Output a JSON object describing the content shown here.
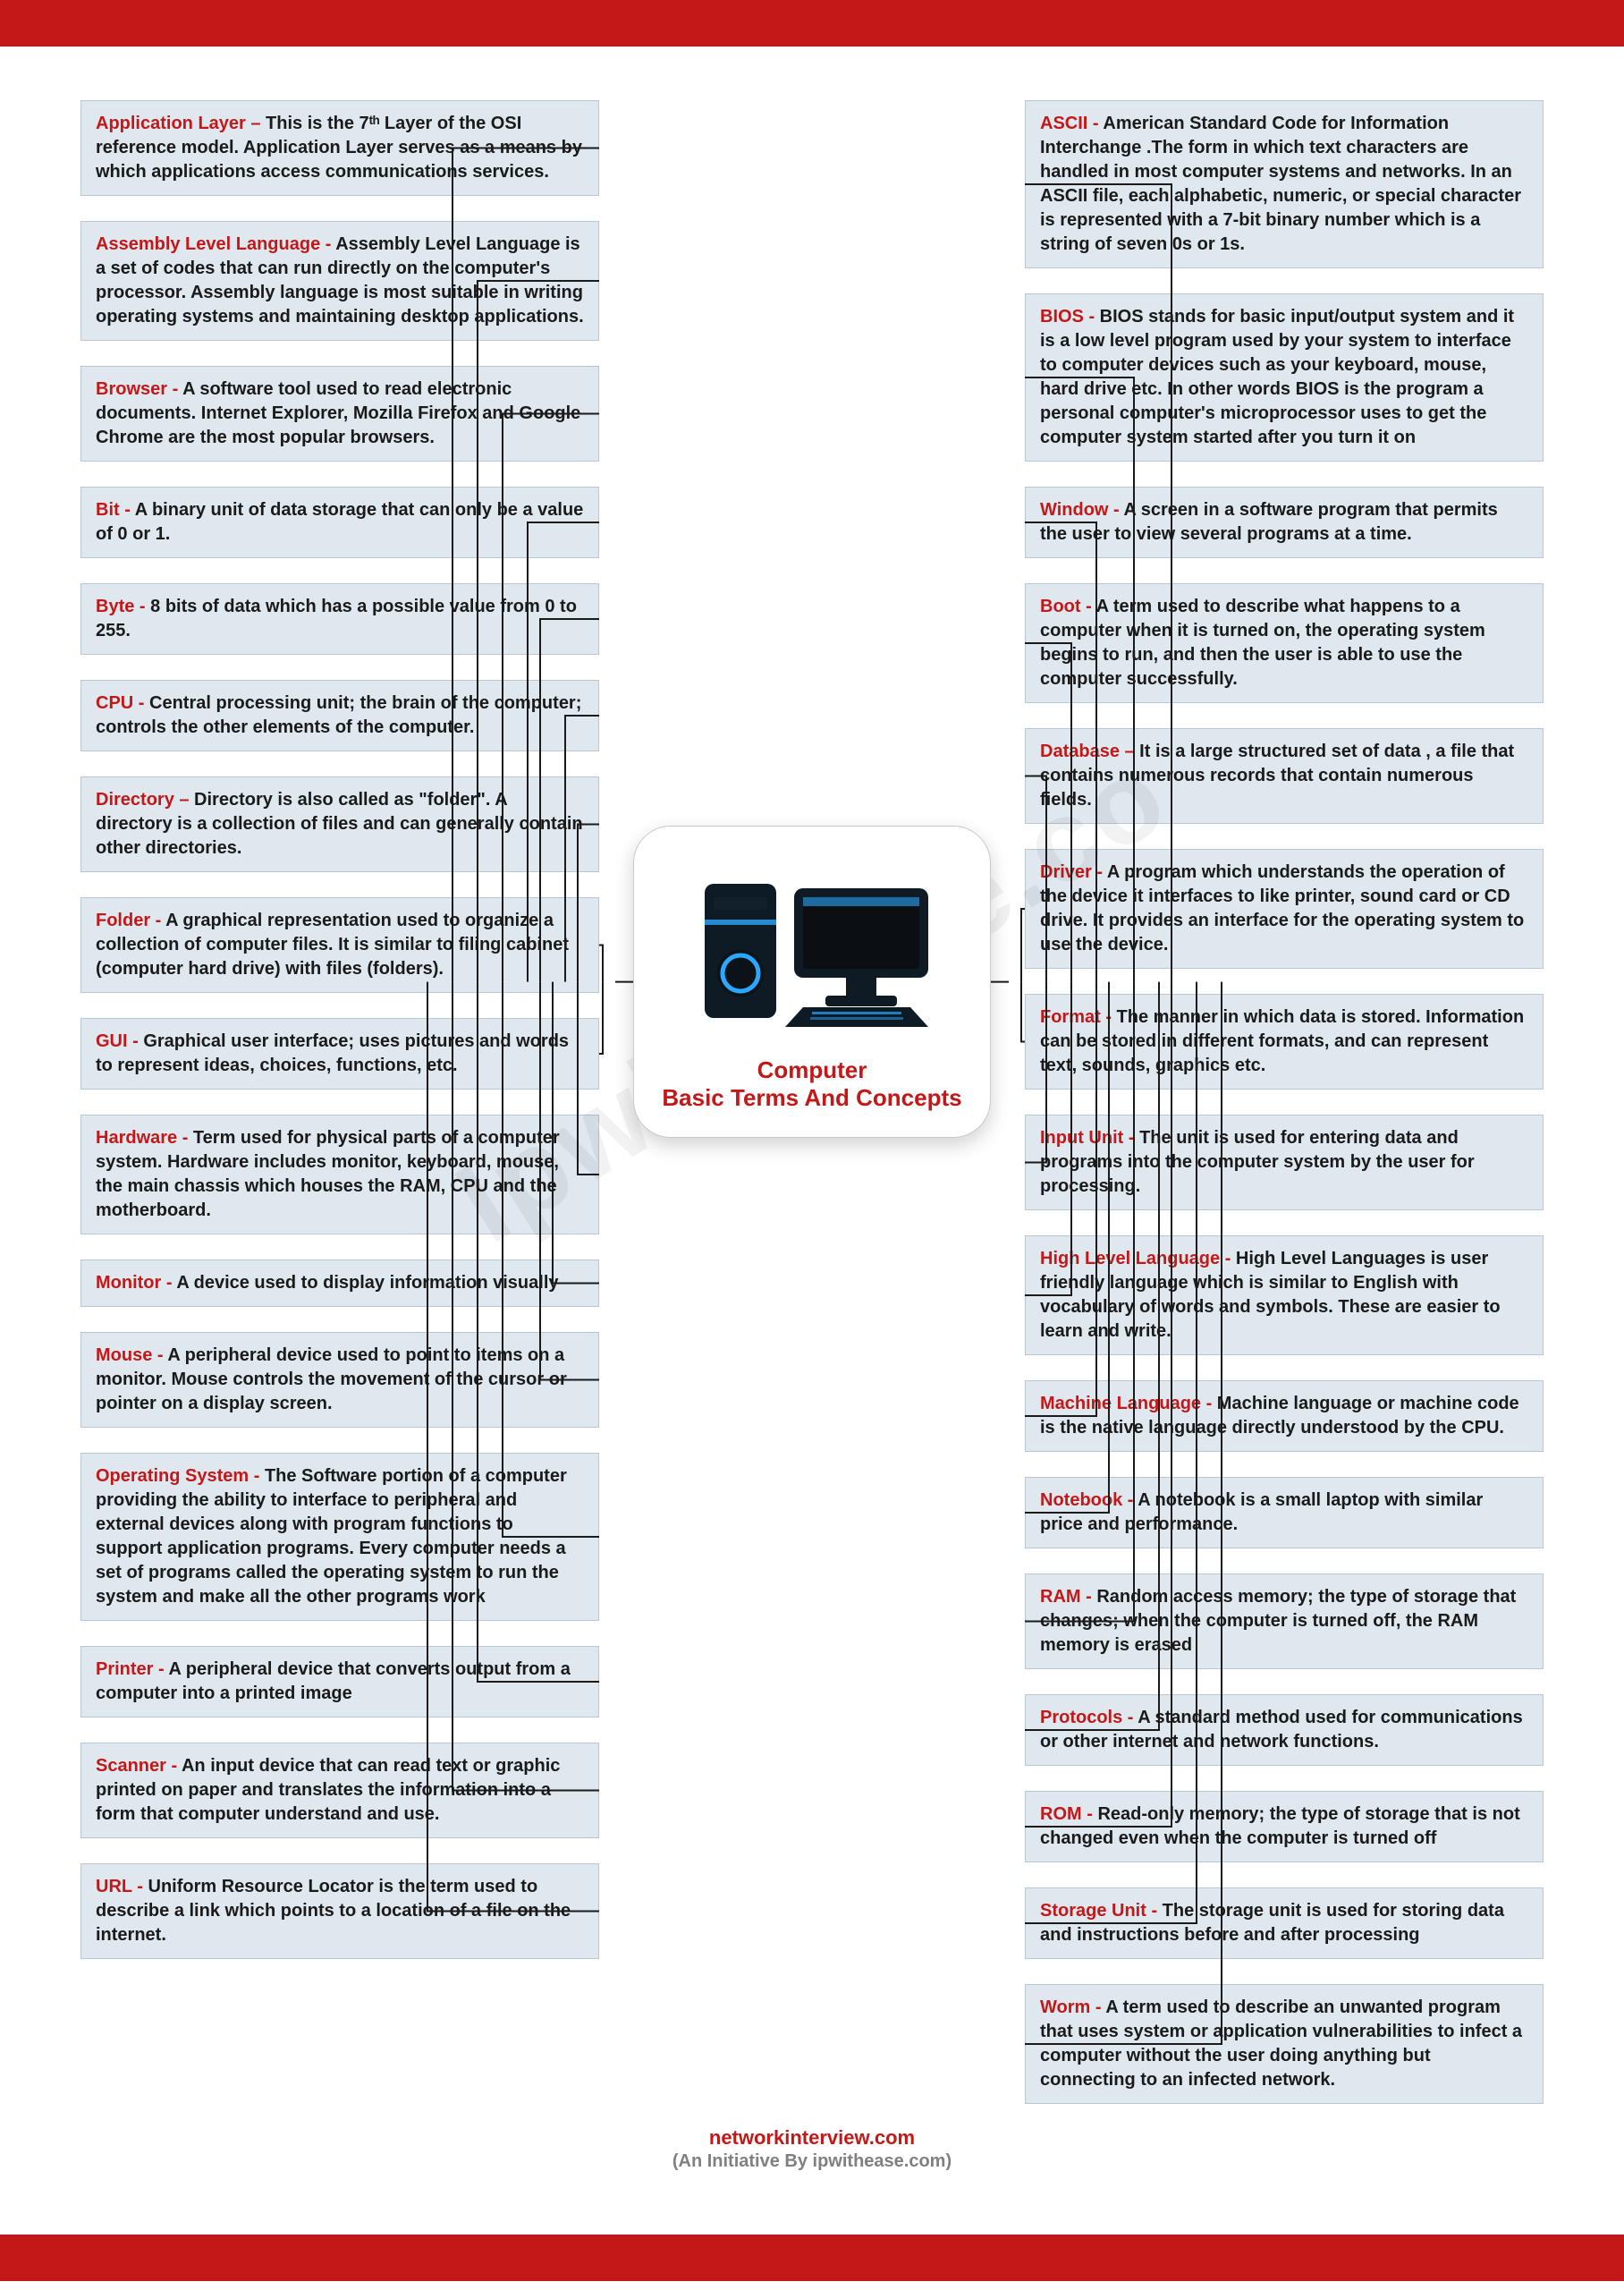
{
  "colors": {
    "bar": "#c41818",
    "box_bg": "#dfe7ef",
    "box_border": "#b9c6d3",
    "term": "#c41818",
    "text": "#1a1a1a",
    "footer_sub": "#808080",
    "wire": "#1a1a1a"
  },
  "center": {
    "line1": "Computer",
    "line2": "Basic Terms And Concepts",
    "pc_body": "#0e1a24",
    "pc_accent": "#2aa8ff",
    "screen": "#0b0f14"
  },
  "footer": {
    "site": "networkinterview.com",
    "sub": "(An Initiative By ipwithease.com)"
  },
  "watermark": "Ipwithease.co",
  "left": [
    {
      "term": "Application Layer –",
      "def": " This is the 7ᵗʰ Layer of the OSI reference model. Application Layer serves as a means by which applications access communications services."
    },
    {
      "term": "Assembly Level Language -",
      "def": " Assembly Level Language is a set of codes that can run directly on the computer's processor. Assembly language is most suitable in writing operating systems and maintaining desktop applications."
    },
    {
      "term": "Browser -",
      "def": " A software tool used to read electronic documents. Internet Explorer, Mozilla Firefox and Google Chrome are the most popular browsers."
    },
    {
      "term": "Bit -",
      "def": " A binary unit of data storage that can only be a value of 0 or 1."
    },
    {
      "term": "Byte -",
      "def": " 8 bits of data which has a possible value from 0 to 255."
    },
    {
      "term": "CPU -",
      "def": " Central processing unit; the brain of the computer; controls the other elements of the computer."
    },
    {
      "term": "Directory –",
      "def": " Directory is also called as \"folder\". A directory is a collection of files and can generally contain other directories."
    },
    {
      "term": "Folder -",
      "def": " A graphical representation used to organize a collection of computer files. It is similar to filing cabinet (computer hard drive) with files (folders)."
    },
    {
      "term": "GUI -",
      "def": " Graphical user interface; uses pictures and words to represent ideas, choices, functions, etc."
    },
    {
      "term": "Hardware -",
      "def": " Term used for physical parts of a computer system. Hardware includes monitor, keyboard, mouse, the main chassis which houses the RAM, CPU and the motherboard."
    },
    {
      "term": "Monitor -",
      "def": " A device used to display information visually"
    },
    {
      "term": "Mouse -",
      "def": " A peripheral device used to point to items on a monitor. Mouse controls the movement of the cursor or pointer on a display screen."
    },
    {
      "term": "Operating System -",
      "def": " The Software portion of a computer providing the ability to interface to peripheral and external devices along with program functions to support application programs. Every computer needs a set of programs called the operating system to run the system and make all the other programs work"
    },
    {
      "term": "Printer -",
      "def": " A peripheral device that converts output from a computer into a printed image"
    },
    {
      "term": "Scanner -",
      "def": " An input device that can read text or graphic printed on paper and translates the information into a form that computer understand and use."
    },
    {
      "term": "URL -",
      "def": " Uniform Resource Locator is the term used to describe a link which points to a location of a file on the internet."
    }
  ],
  "right": [
    {
      "term": "ASCII -",
      "def": " American Standard Code for Information Interchange .The form in which text characters are handled in most computer systems and networks. In an ASCII file, each alphabetic, numeric, or special character is represented with a 7-bit binary number which is a string of seven 0s or 1s."
    },
    {
      "term": "BIOS -",
      "def": " BIOS stands for basic input/output system and it is a low level program used by your system to interface to computer devices such as your keyboard, mouse, hard drive etc. In other words BIOS is the program a personal computer's microprocessor uses to get the computer system started after you turn it on"
    },
    {
      "term": "Window -",
      "def": " A screen in a software program that permits the user to view several programs at a time."
    },
    {
      "term": "Boot -",
      "def": " A term used to describe what happens to a computer when it is turned on, the operating system begins to run, and then the user is able to use the computer successfully."
    },
    {
      "term": "Database –",
      "def": " It is a large structured set of data , a file that contains numerous records that contain numerous fields."
    },
    {
      "term": "Driver -",
      "def": " A program which understands the operation of the device it interfaces to like printer, sound card or CD drive. It provides an interface for the operating system to use the device."
    },
    {
      "term": "Format -",
      "def": " The manner in which data is stored. Information can be stored in different formats, and can represent text, sounds, graphics etc."
    },
    {
      "term": "Input Unit -",
      "def": " The unit is used for entering data and programs into the computer system by the user for processing."
    },
    {
      "term": "High Level Language -",
      "def": " High Level Languages is user friendly language which is similar to English with vocabulary of words and symbols. These are easier to learn and write."
    },
    {
      "term": "Machine Language -",
      "def": " Machine language or machine code is the native language directly understood by the CPU."
    },
    {
      "term": "Notebook -",
      "def": " A notebook is a small laptop with similar price and performance."
    },
    {
      "term": "RAM -",
      "def": " Random access memory; the type of storage that changes; when the computer is turned off, the RAM memory is erased"
    },
    {
      "term": "Protocols -",
      "def": " A standard method used for communications or other internet and network functions."
    },
    {
      "term": "ROM -",
      "def": " Read-only memory; the type of storage that is not changed even when the computer is turned off"
    },
    {
      "term": "Storage Unit -",
      "def": " The storage unit is used for storing data and instructions before and after processing"
    },
    {
      "term": "Worm -",
      "def": " A term used to describe an unwanted program that uses system or application vulnerabilities to infect a computer without the user doing anything but connecting to an infected network."
    }
  ]
}
